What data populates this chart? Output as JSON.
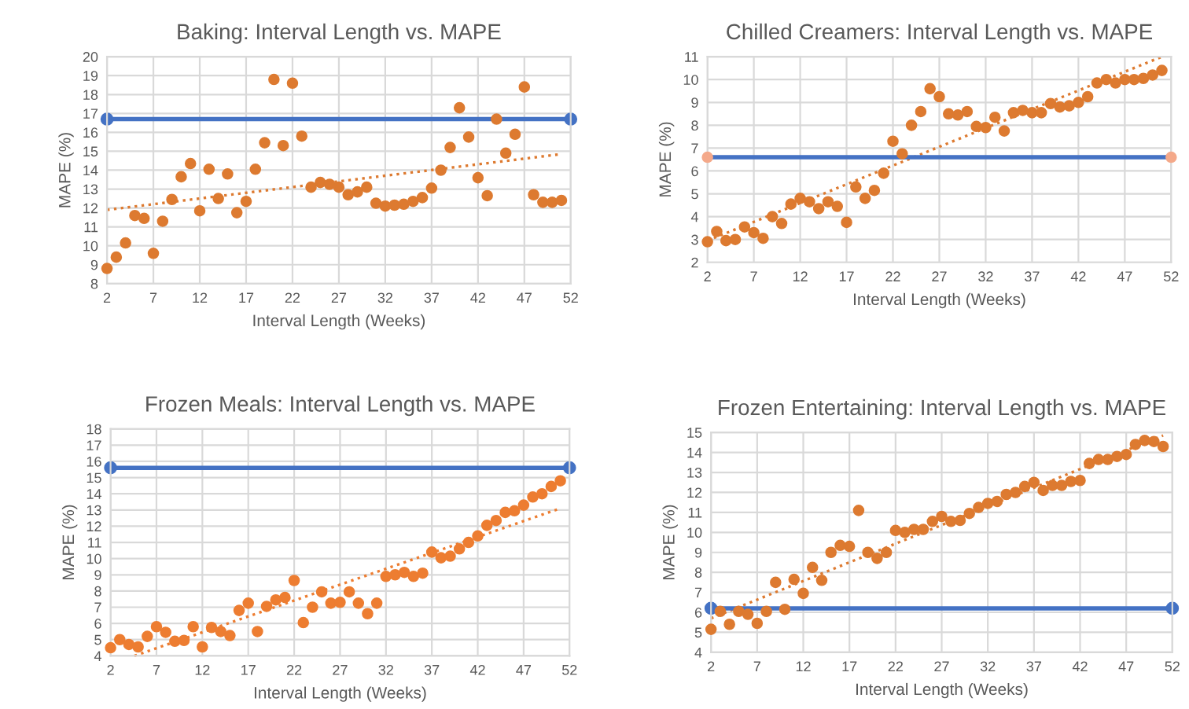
{
  "chart_data": [
    {
      "type": "scatter",
      "title": "Baking: Interval Length vs. MAPE",
      "xlabel": "Interval Length (Weeks)",
      "ylabel": "MAPE (%)",
      "xlim": [
        2,
        52
      ],
      "xticks": [
        2,
        7,
        12,
        17,
        22,
        27,
        32,
        37,
        42,
        47,
        52
      ],
      "ylim": [
        8,
        20
      ],
      "yticks": [
        8,
        9,
        10,
        11,
        12,
        13,
        14,
        15,
        16,
        17,
        18,
        19,
        20
      ],
      "grid": true,
      "legend": false,
      "series": [
        {
          "type": "scatter",
          "color": "#dd7a30",
          "marker": "circle",
          "x": [
            2,
            3,
            4,
            5,
            6,
            7,
            8,
            9,
            10,
            11,
            12,
            13,
            14,
            15,
            16,
            17,
            18,
            19,
            20,
            21,
            22,
            23,
            24,
            25,
            26,
            27,
            28,
            29,
            30,
            31,
            32,
            33,
            34,
            35,
            36,
            37,
            38,
            39,
            40,
            41,
            42,
            43,
            44,
            45,
            46,
            47,
            48,
            49,
            50,
            51
          ],
          "values": [
            8.8,
            9.4,
            10.15,
            11.6,
            11.45,
            9.6,
            11.3,
            12.45,
            13.65,
            14.35,
            11.85,
            14.05,
            12.5,
            13.8,
            11.75,
            12.35,
            14.05,
            15.45,
            18.8,
            15.3,
            18.6,
            15.8,
            13.1,
            13.35,
            13.25,
            13.1,
            12.7,
            12.85,
            13.1,
            12.25,
            12.1,
            12.15,
            12.2,
            12.35,
            12.55,
            13.05,
            14.0,
            15.2,
            17.3,
            15.75,
            13.6,
            12.65,
            16.7,
            14.9,
            15.9,
            18.4,
            12.7,
            12.3,
            12.3,
            12.4
          ]
        },
        {
          "type": "line",
          "color": "#dd7a30",
          "line_style": "dotted",
          "marker": "none",
          "x": [
            2,
            51
          ],
          "values": [
            11.9,
            14.85
          ]
        },
        {
          "type": "line",
          "color": "#4472c4",
          "line_style": "solid",
          "marker": "circle",
          "x": [
            2,
            52
          ],
          "values": [
            16.7,
            16.7
          ]
        }
      ]
    },
    {
      "type": "scatter",
      "title": "Chilled Creamers: Interval Length vs. MAPE",
      "xlabel": "Interval Length (Weeks)",
      "ylabel": "MAPE (%)",
      "xlim": [
        2,
        52
      ],
      "xticks": [
        2,
        7,
        12,
        17,
        22,
        27,
        32,
        37,
        42,
        47,
        52
      ],
      "ylim": [
        2,
        11
      ],
      "yticks": [
        2,
        3,
        4,
        5,
        6,
        7,
        8,
        9,
        10,
        11
      ],
      "grid": true,
      "legend": false,
      "series": [
        {
          "type": "scatter",
          "color": "#dd7a30",
          "marker": "circle",
          "x": [
            2,
            3,
            4,
            5,
            6,
            7,
            8,
            9,
            10,
            11,
            12,
            13,
            14,
            15,
            16,
            17,
            18,
            19,
            20,
            21,
            22,
            23,
            24,
            25,
            26,
            27,
            28,
            29,
            30,
            31,
            32,
            33,
            34,
            35,
            36,
            37,
            38,
            39,
            40,
            41,
            42,
            43,
            44,
            45,
            46,
            47,
            48,
            49,
            50,
            51
          ],
          "values": [
            2.9,
            3.35,
            2.95,
            3.0,
            3.55,
            3.3,
            3.05,
            4.0,
            3.7,
            4.55,
            4.8,
            4.65,
            4.35,
            4.65,
            4.45,
            3.75,
            5.3,
            4.8,
            5.15,
            5.9,
            7.3,
            6.75,
            8.0,
            8.6,
            9.6,
            9.25,
            8.5,
            8.45,
            8.6,
            7.95,
            7.9,
            8.35,
            7.75,
            8.55,
            8.65,
            8.55,
            8.55,
            8.95,
            8.8,
            8.85,
            9.0,
            9.25,
            9.85,
            10.0,
            9.85,
            10.0,
            10.0,
            10.05,
            10.2,
            10.4
          ]
        },
        {
          "type": "line",
          "color": "#dd7a30",
          "line_style": "dotted",
          "marker": "none",
          "x": [
            2,
            51
          ],
          "values": [
            2.95,
            11.0
          ]
        },
        {
          "type": "line",
          "color": "#4472c4",
          "line_style": "solid",
          "marker": "none",
          "x": [
            2,
            52
          ],
          "values": [
            6.6,
            6.6
          ]
        },
        {
          "type": "scatter",
          "color": "#f4a98a",
          "marker": "circle",
          "x": [
            2,
            52
          ],
          "values": [
            6.6,
            6.6
          ]
        }
      ]
    },
    {
      "type": "scatter",
      "title": "Frozen Meals: Interval Length vs. MAPE",
      "xlabel": "Interval Length (Weeks)",
      "ylabel": "MAPE (%)",
      "xlim": [
        2,
        52
      ],
      "xticks": [
        2,
        7,
        12,
        17,
        22,
        27,
        32,
        37,
        42,
        47,
        52
      ],
      "ylim": [
        4,
        18
      ],
      "yticks": [
        4,
        5,
        6,
        7,
        8,
        9,
        10,
        11,
        12,
        13,
        14,
        15,
        16,
        17,
        18
      ],
      "grid": true,
      "legend": false,
      "series": [
        {
          "type": "scatter",
          "color": "#ed7d31",
          "marker": "circle",
          "x": [
            2,
            3,
            4,
            5,
            6,
            7,
            8,
            9,
            10,
            11,
            12,
            13,
            14,
            15,
            16,
            17,
            18,
            19,
            20,
            21,
            22,
            23,
            24,
            25,
            26,
            27,
            28,
            29,
            30,
            31,
            32,
            33,
            34,
            35,
            36,
            37,
            38,
            39,
            40,
            41,
            42,
            43,
            44,
            45,
            46,
            47,
            48,
            49,
            50,
            51
          ],
          "values": [
            4.5,
            5.0,
            4.7,
            4.55,
            5.2,
            5.8,
            5.45,
            4.9,
            4.95,
            5.8,
            4.55,
            5.75,
            5.5,
            5.25,
            6.8,
            7.25,
            5.5,
            7.05,
            7.45,
            7.6,
            8.65,
            6.05,
            7.0,
            7.95,
            7.25,
            7.3,
            7.95,
            7.25,
            6.6,
            7.25,
            8.9,
            9.0,
            9.15,
            8.9,
            9.1,
            10.4,
            10.05,
            10.15,
            10.6,
            11.0,
            11.4,
            12.05,
            12.35,
            12.85,
            12.95,
            13.3,
            13.8,
            14.0,
            14.45,
            14.8
          ]
        },
        {
          "type": "line",
          "color": "#ed7d31",
          "line_style": "dotted",
          "marker": "none",
          "x": [
            4.6,
            51
          ],
          "values": [
            4.0,
            13.1
          ]
        },
        {
          "type": "line",
          "color": "#4472c4",
          "line_style": "solid",
          "marker": "circle",
          "x": [
            2,
            52
          ],
          "values": [
            15.6,
            15.6
          ]
        }
      ]
    },
    {
      "type": "scatter",
      "title": "Frozen Entertaining: Interval Length vs. MAPE",
      "xlabel": "Interval Length (Weeks)",
      "ylabel": "MAPE (%)",
      "xlim": [
        2,
        52
      ],
      "xticks": [
        2,
        7,
        12,
        17,
        22,
        27,
        32,
        37,
        42,
        47,
        52
      ],
      "ylim": [
        4,
        15
      ],
      "yticks": [
        4,
        5,
        6,
        7,
        8,
        9,
        10,
        11,
        12,
        13,
        14,
        15
      ],
      "grid": true,
      "legend": false,
      "series": [
        {
          "type": "scatter",
          "color": "#dd7a30",
          "marker": "circle",
          "x": [
            2,
            3,
            4,
            5,
            6,
            7,
            8,
            9,
            10,
            11,
            12,
            13,
            14,
            15,
            16,
            17,
            18,
            19,
            20,
            21,
            22,
            23,
            24,
            25,
            26,
            27,
            28,
            29,
            30,
            31,
            32,
            33,
            34,
            35,
            36,
            37,
            38,
            39,
            40,
            41,
            42,
            43,
            44,
            45,
            46,
            47,
            48,
            49,
            50,
            51
          ],
          "values": [
            5.15,
            6.05,
            5.4,
            6.05,
            5.9,
            5.45,
            6.05,
            7.5,
            6.15,
            7.65,
            6.95,
            8.25,
            7.6,
            9.0,
            9.35,
            9.3,
            11.1,
            9.0,
            8.7,
            9.0,
            10.1,
            10.0,
            10.15,
            10.15,
            10.55,
            10.8,
            10.55,
            10.6,
            10.95,
            11.25,
            11.45,
            11.55,
            11.9,
            12.0,
            12.3,
            12.5,
            12.1,
            12.35,
            12.35,
            12.55,
            12.6,
            13.45,
            13.65,
            13.65,
            13.8,
            13.9,
            14.4,
            14.6,
            14.55,
            14.3
          ]
        },
        {
          "type": "line",
          "color": "#dd7a30",
          "line_style": "dotted",
          "marker": "none",
          "x": [
            2,
            51
          ],
          "values": [
            5.7,
            14.85
          ]
        },
        {
          "type": "line",
          "color": "#4472c4",
          "line_style": "solid",
          "marker": "circle",
          "x": [
            2,
            52
          ],
          "values": [
            6.2,
            6.2
          ]
        }
      ]
    }
  ]
}
